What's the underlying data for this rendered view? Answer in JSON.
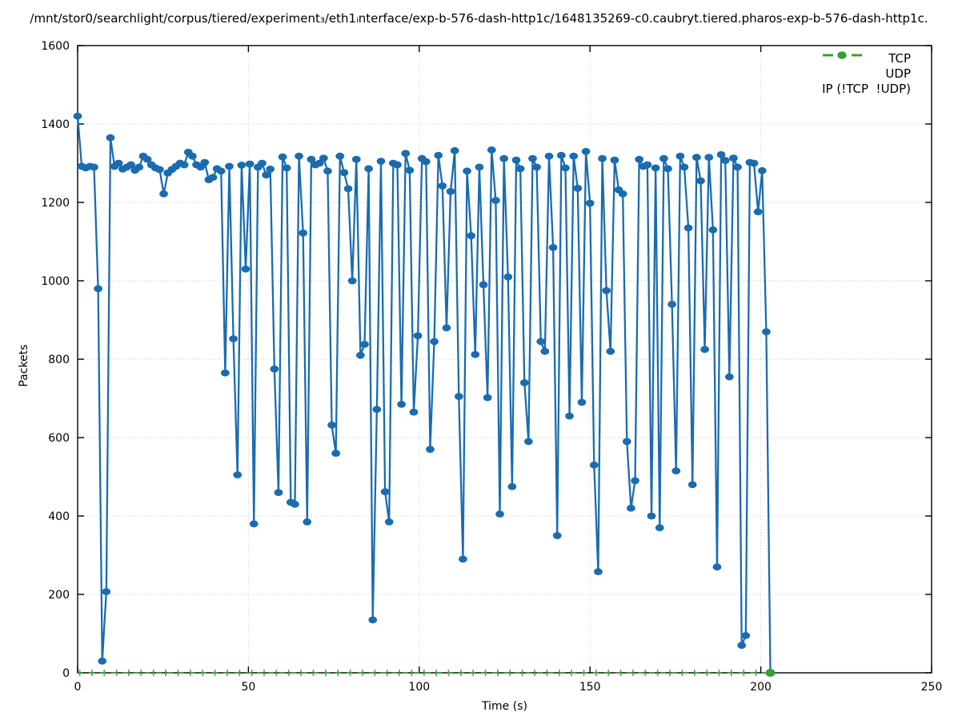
{
  "title": "/mnt/stor0/searchlight/corpus/tiered/experiment₃/eth1ᵢnterface/exp-b-576-dash-http1c/1648135269-c0.caubryt.tiered.pharos-exp-b-576-dash-http1c.",
  "chart": {
    "xlabel": "Time (s)",
    "ylabel": "Packets",
    "legend": [
      {
        "name": "TCP",
        "color": "#1a6cb0"
      },
      {
        "name": "UDP",
        "color": "#ff7f0e"
      },
      {
        "name": "IP (!TCP  !UDP)",
        "color": "#32a032"
      }
    ]
  },
  "chart_data": {
    "type": "line",
    "title": "/mnt/stor0/searchlight/corpus/tiered/experiment₃/eth1ᵢnterface/exp-b-576-dash-http1c/1648135269-c0.caubryt.tiered.pharos-exp-b-576-dash-http1c.",
    "xlabel": "Time (s)",
    "ylabel": "Packets",
    "xlim": [
      0,
      250
    ],
    "ylim": [
      0,
      1600
    ],
    "x_ticks": [
      0,
      50,
      100,
      150,
      200,
      250
    ],
    "y_ticks": [
      0,
      200,
      400,
      600,
      800,
      1000,
      1200,
      1400,
      1600
    ],
    "grid": "dotted",
    "legend_position": "top-right",
    "series": [
      {
        "name": "TCP",
        "color": "#1a6cb0",
        "style": "linespoints",
        "t0": 0,
        "dt": 1.2,
        "values": [
          1420,
          1292,
          1288,
          1292,
          1290,
          980,
          30,
          207,
          1365,
          1292,
          1300,
          1285,
          1290,
          1296,
          1282,
          1290,
          1318,
          1310,
          1296,
          1288,
          1284,
          1222,
          1275,
          1284,
          1292,
          1300,
          1296,
          1328,
          1318,
          1296,
          1290,
          1302,
          1258,
          1264,
          1286,
          1280,
          765,
          1292,
          852,
          505,
          1295,
          1030,
          1298,
          380,
          1290,
          1300,
          1270,
          1285,
          775,
          460,
          1316,
          1288,
          435,
          430,
          1318,
          1122,
          385,
          1310,
          1296,
          1300,
          1313,
          1280,
          632,
          560,
          1318,
          1276,
          1235,
          1000,
          1310,
          810,
          838,
          1286,
          135,
          672,
          1305,
          462,
          385,
          1300,
          1296,
          685,
          1325,
          1282,
          665,
          860,
          1312,
          1304,
          570,
          845,
          1320,
          1242,
          880,
          1228,
          1332,
          705,
          290,
          1280,
          1115,
          812,
          1290,
          990,
          702,
          1334,
          1205,
          405,
          1312,
          1010,
          475,
          1308,
          1286,
          740,
          590,
          1312,
          1290,
          845,
          820,
          1318,
          1085,
          350,
          1320,
          1288,
          655,
          1318,
          1236,
          690,
          1330,
          1198,
          530,
          258,
          1312,
          975,
          820,
          1308,
          1232,
          1222,
          590,
          420,
          490,
          1310,
          1292,
          1296,
          400,
          1288,
          370,
          1312,
          1286,
          940,
          515,
          1318,
          1290,
          1135,
          480,
          1315,
          1255,
          825,
          1315,
          1130,
          270,
          1322,
          1307,
          755,
          1313,
          1290,
          70,
          95,
          1302,
          1300,
          1176,
          1281,
          870,
          0
        ]
      },
      {
        "name": "UDP",
        "color": "#ff7f0e",
        "style": "linespoints",
        "points": []
      },
      {
        "name": "IP (!TCP !UDP)",
        "color": "#32a032",
        "style": "linespoints",
        "line": [
          [
            0,
            0
          ],
          [
            202.8,
            0
          ]
        ],
        "marker_interval_s": 3.6,
        "end_point": [
          202.8,
          0
        ]
      }
    ]
  }
}
